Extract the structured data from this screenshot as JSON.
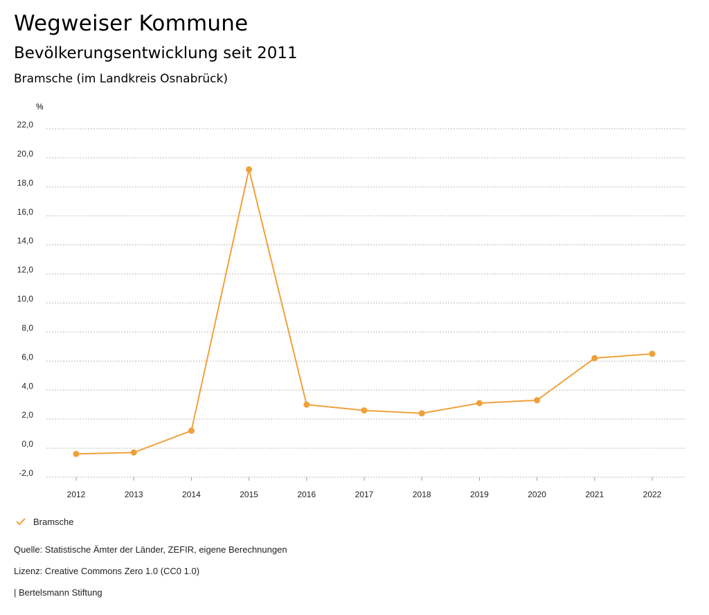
{
  "header": {
    "title": "Wegweiser Kommune",
    "subtitle": "Bevölkerungsentwicklung seit 2011",
    "region": "Bramsche (im Landkreis Osnabrück)"
  },
  "footer": {
    "source": "Quelle: Statistische Ämter der Länder, ZEFIR, eigene Berechnungen",
    "license": "Lizenz: Creative Commons Zero 1.0 (CC0 1.0)",
    "brand": "| Bertelsmann Stiftung"
  },
  "colors": {
    "series": "#f0a03a",
    "grid": "#bbbbbb"
  },
  "chart_data": {
    "type": "line",
    "title": "Bevölkerungsentwicklung seit 2011",
    "xlabel": "",
    "ylabel": "%",
    "x": [
      "2012",
      "2013",
      "2014",
      "2015",
      "2016",
      "2017",
      "2018",
      "2019",
      "2020",
      "2021",
      "2022"
    ],
    "series": [
      {
        "name": "Bramsche",
        "values": [
          -0.4,
          -0.3,
          1.2,
          19.2,
          3.0,
          2.6,
          2.4,
          3.1,
          3.3,
          6.2,
          6.5
        ]
      }
    ],
    "ylim": [
      -2,
      22
    ],
    "yticks": [
      "-2,0",
      "0,0",
      "2,0",
      "4,0",
      "6,0",
      "8,0",
      "10,0",
      "12,0",
      "14,0",
      "16,0",
      "18,0",
      "20,0",
      "22,0"
    ],
    "grid": true,
    "legend": "bottom-left"
  }
}
